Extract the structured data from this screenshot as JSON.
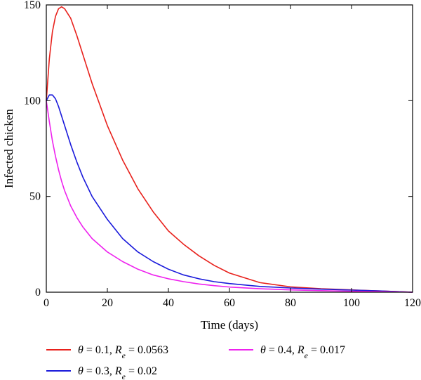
{
  "chart_data": {
    "type": "line",
    "xlabel": "Time (days)",
    "ylabel": "Infected chicken",
    "xlim": [
      0,
      120
    ],
    "ylim": [
      0,
      150
    ],
    "xticks": [
      0,
      20,
      40,
      60,
      80,
      100,
      120
    ],
    "yticks": [
      0,
      50,
      100,
      150
    ],
    "grid": false,
    "legend_position": "bottom",
    "series": [
      {
        "name": "θ = 0.1, R_e = 0.0563",
        "legend": {
          "theta": "θ",
          "theta_value": " = 0.1, ",
          "r": "R",
          "sub": "e",
          "r_value": " = 0.0563"
        },
        "color": "#e8211c",
        "x": [
          0,
          1,
          2,
          3,
          4,
          5,
          6,
          8,
          10,
          12,
          15,
          20,
          25,
          30,
          35,
          40,
          45,
          50,
          55,
          60,
          70,
          80,
          90,
          100,
          110,
          120
        ],
        "y": [
          100,
          122,
          136,
          144,
          148,
          149,
          148,
          143,
          134,
          124,
          109,
          87,
          69,
          54,
          42,
          32,
          25,
          19,
          14,
          10,
          5,
          2.8,
          1.8,
          1.2,
          0.6,
          0
        ]
      },
      {
        "name": "θ = 0.3, R_e = 0.02",
        "legend": {
          "theta": "θ",
          "theta_value": " = 0.3, ",
          "r": "R",
          "sub": "e",
          "r_value": " = 0.02"
        },
        "color": "#1a1adb",
        "x": [
          0,
          1,
          2,
          3,
          4,
          5,
          6,
          8,
          10,
          12,
          15,
          20,
          25,
          30,
          35,
          40,
          45,
          50,
          55,
          60,
          70,
          80,
          90,
          100,
          110,
          120
        ],
        "y": [
          100,
          103,
          103,
          101,
          97,
          92,
          87,
          77,
          68,
          60,
          50,
          38,
          28,
          21,
          16,
          12,
          9,
          7,
          5.5,
          4.5,
          3,
          2.2,
          1.6,
          1.1,
          0.6,
          0
        ]
      },
      {
        "name": "θ = 0.4, R_e = 0.017",
        "legend": {
          "theta": "θ",
          "theta_value": " = 0.4, ",
          "r": "R",
          "sub": "e",
          "r_value": " = 0.017"
        },
        "color": "#ee22ee",
        "x": [
          0,
          1,
          2,
          3,
          4,
          5,
          6,
          8,
          10,
          12,
          15,
          20,
          25,
          30,
          35,
          40,
          45,
          50,
          55,
          60,
          70,
          80,
          90,
          100,
          110,
          120
        ],
        "y": [
          100,
          89,
          79,
          71,
          64,
          58,
          53,
          45,
          39,
          34,
          28,
          21,
          16,
          12,
          9,
          7,
          5.5,
          4.3,
          3.4,
          2.7,
          1.8,
          1.2,
          0.8,
          0.5,
          0.3,
          0
        ]
      }
    ]
  }
}
